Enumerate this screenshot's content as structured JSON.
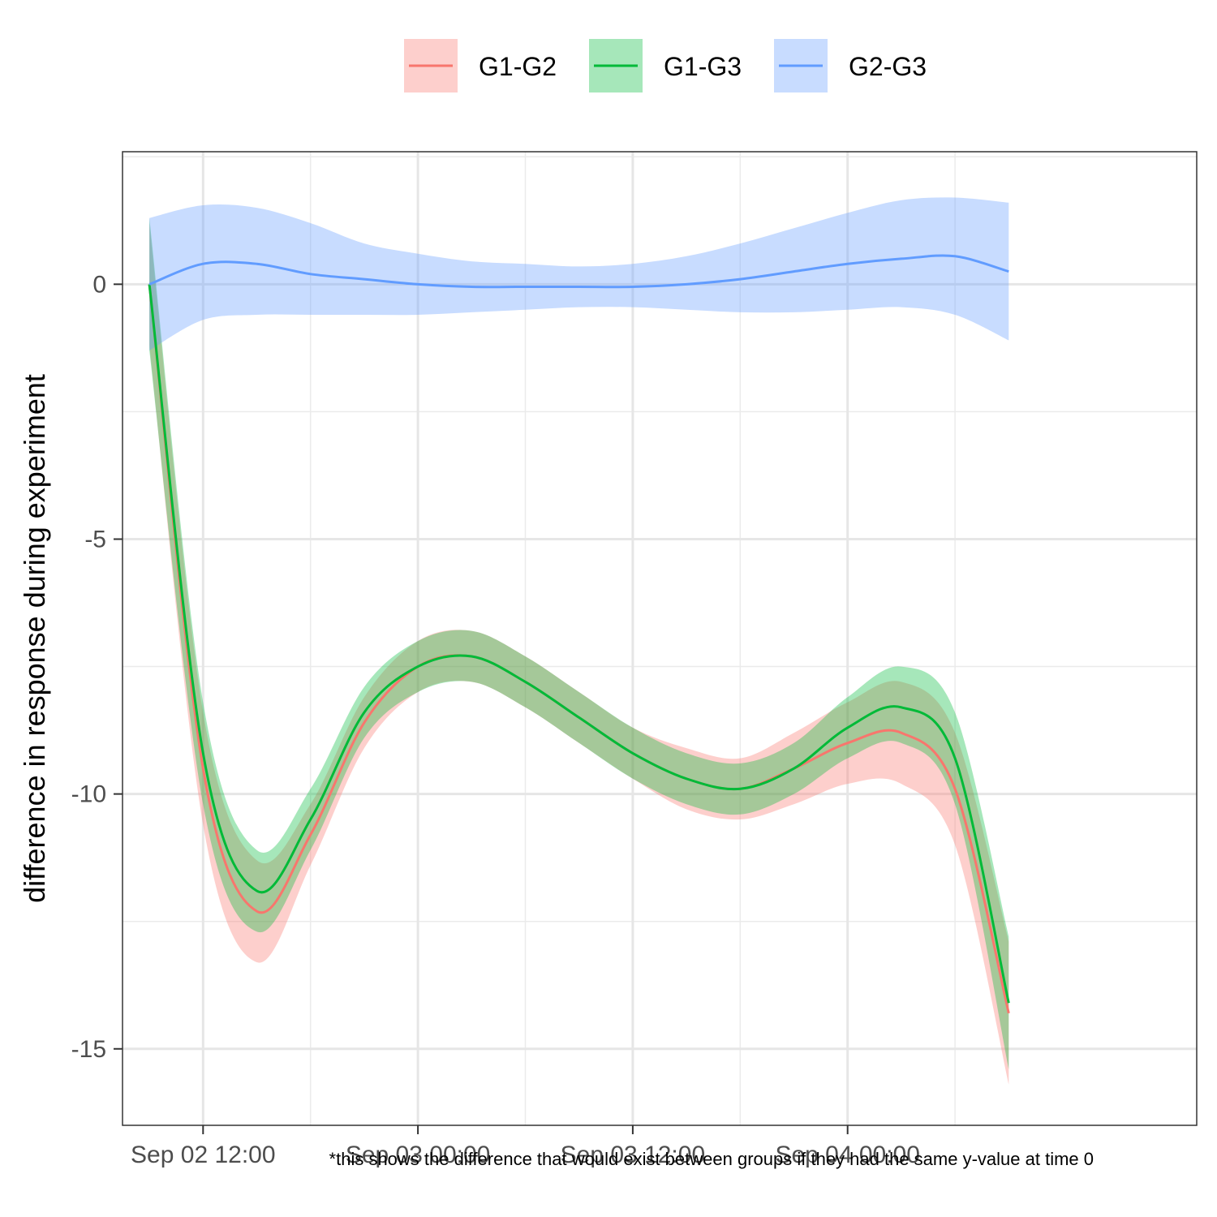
{
  "chart_data": {
    "type": "line",
    "title": "",
    "xlabel": "",
    "ylabel": "difference in response during experiment",
    "caption": "*this shows the difference that would exist between groups if they had the same y-value at time 0",
    "x_type": "datetime",
    "xlim": [
      "2024-09-02T07:30",
      "2024-09-04T19:30"
    ],
    "ylim": [
      -16.5,
      2.6
    ],
    "x_ticks": [
      {
        "value": "2024-09-02T12:00",
        "label": "Sep 02 12:00"
      },
      {
        "value": "2024-09-03T00:00",
        "label": "Sep 03 00:00"
      },
      {
        "value": "2024-09-03T12:00",
        "label": "Sep 03 12:00"
      },
      {
        "value": "2024-09-04T00:00",
        "label": "Sep 04 00:00"
      }
    ],
    "x_minor_grid": [
      "2024-09-02T18:00",
      "2024-09-03T06:00",
      "2024-09-03T18:00",
      "2024-09-04T06:00"
    ],
    "y_ticks": [
      {
        "value": 0,
        "label": "0"
      },
      {
        "value": -5,
        "label": "-5"
      },
      {
        "value": -10,
        "label": "-10"
      },
      {
        "value": -15,
        "label": "-15"
      }
    ],
    "y_minor_grid": [
      2.5,
      -2.5,
      -7.5,
      -12.5
    ],
    "grid": true,
    "legend_position": "top",
    "x": [
      "2024-09-02T09:00",
      "2024-09-02T12:00",
      "2024-09-02T15:00",
      "2024-09-02T18:00",
      "2024-09-02T21:00",
      "2024-09-03T00:00",
      "2024-09-03T03:00",
      "2024-09-03T06:00",
      "2024-09-03T09:00",
      "2024-09-03T12:00",
      "2024-09-03T15:00",
      "2024-09-03T18:00",
      "2024-09-03T21:00",
      "2024-09-04T00:00",
      "2024-09-04T03:00",
      "2024-09-04T06:00",
      "2024-09-04T09:00"
    ],
    "series": [
      {
        "name": "G1-G2",
        "color": "#F8766D",
        "values": [
          0.0,
          -9.5,
          -12.3,
          -10.8,
          -8.6,
          -7.5,
          -7.3,
          -7.8,
          -8.5,
          -9.2,
          -9.7,
          -9.9,
          -9.5,
          -9.0,
          -8.8,
          -9.9,
          -14.3
        ],
        "lower": [
          -1.2,
          -10.6,
          -13.3,
          -11.4,
          -9.1,
          -8.0,
          -7.8,
          -8.3,
          -9.0,
          -9.7,
          -10.3,
          -10.5,
          -10.2,
          -9.8,
          -9.8,
          -11.0,
          -15.7
        ],
        "upper": [
          1.2,
          -8.4,
          -11.3,
          -10.2,
          -8.1,
          -7.0,
          -6.8,
          -7.3,
          -8.0,
          -8.7,
          -9.1,
          -9.3,
          -8.8,
          -8.2,
          -7.8,
          -8.8,
          -12.9
        ]
      },
      {
        "name": "G1-G3",
        "color": "#00BA38",
        "values": [
          0.0,
          -9.2,
          -11.9,
          -10.5,
          -8.4,
          -7.5,
          -7.3,
          -7.8,
          -8.5,
          -9.2,
          -9.7,
          -9.9,
          -9.5,
          -8.7,
          -8.3,
          -9.3,
          -14.1
        ],
        "lower": [
          -1.3,
          -10.2,
          -12.7,
          -11.1,
          -8.9,
          -8.0,
          -7.8,
          -8.3,
          -9.0,
          -9.7,
          -10.2,
          -10.4,
          -10.0,
          -9.3,
          -9.0,
          -10.2,
          -15.4
        ],
        "upper": [
          1.3,
          -8.2,
          -11.1,
          -9.9,
          -7.9,
          -7.0,
          -6.8,
          -7.3,
          -8.0,
          -8.7,
          -9.2,
          -9.4,
          -9.0,
          -8.1,
          -7.5,
          -8.4,
          -12.8
        ]
      },
      {
        "name": "G2-G3",
        "color": "#619CFF",
        "values": [
          0.0,
          0.4,
          0.4,
          0.2,
          0.1,
          0.0,
          -0.05,
          -0.05,
          -0.05,
          -0.05,
          0.0,
          0.1,
          0.25,
          0.4,
          0.5,
          0.55,
          0.25
        ],
        "lower": [
          -1.3,
          -0.7,
          -0.6,
          -0.6,
          -0.6,
          -0.6,
          -0.55,
          -0.5,
          -0.45,
          -0.45,
          -0.5,
          -0.55,
          -0.55,
          -0.5,
          -0.45,
          -0.6,
          -1.1
        ],
        "upper": [
          1.3,
          1.55,
          1.5,
          1.2,
          0.8,
          0.6,
          0.45,
          0.4,
          0.35,
          0.4,
          0.55,
          0.8,
          1.1,
          1.4,
          1.65,
          1.7,
          1.6
        ]
      }
    ]
  }
}
